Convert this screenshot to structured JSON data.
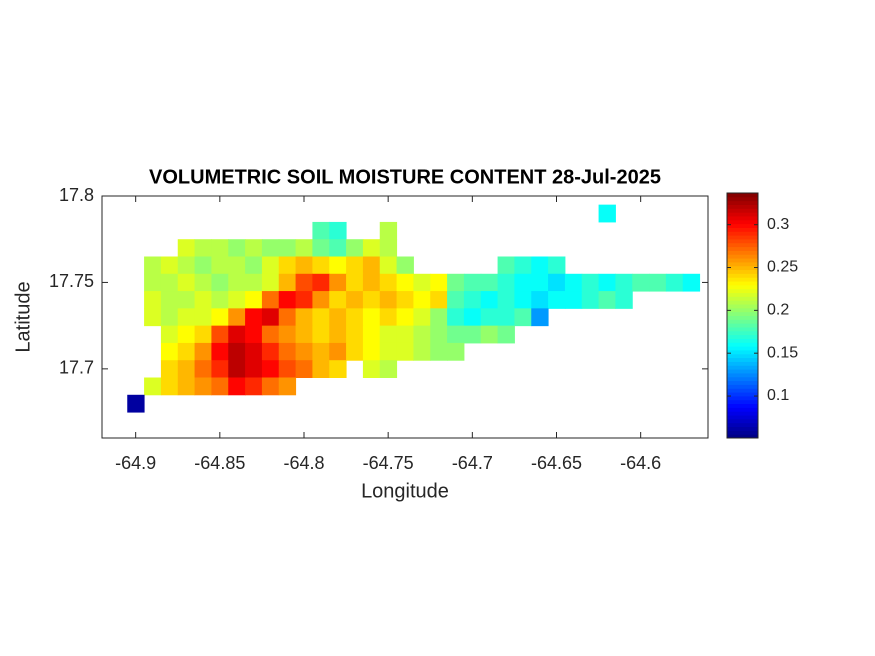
{
  "chart_data": {
    "type": "heatmap",
    "title": "VOLUMETRIC SOIL MOISTURE CONTENT 28-Jul-2025",
    "x_label": "Longitude",
    "y_label": "Latitude",
    "colormap": "jet",
    "xlim": [
      -64.92,
      -64.56
    ],
    "ylim": [
      17.66,
      17.8
    ],
    "xticks": [
      -64.9,
      -64.85,
      -64.8,
      -64.75,
      -64.7,
      -64.65,
      -64.6
    ],
    "yticks": [
      17.7,
      17.75,
      17.8
    ],
    "clim": [
      0.051,
      0.337
    ],
    "cticks": [
      0.1,
      0.15,
      0.2,
      0.25,
      0.3
    ],
    "lon": [
      -64.9,
      -64.89,
      -64.88,
      -64.87,
      -64.86,
      -64.85,
      -64.84,
      -64.83,
      -64.82,
      -64.81,
      -64.8,
      -64.79,
      -64.78,
      -64.77,
      -64.76,
      -64.75,
      -64.74,
      -64.73,
      -64.72,
      -64.71,
      -64.7,
      -64.69,
      -64.68,
      -64.67,
      -64.66,
      -64.65,
      -64.64,
      -64.63,
      -64.62,
      -64.61,
      -64.6,
      -64.59,
      -64.58,
      -64.57
    ],
    "lat": [
      17.79,
      17.78,
      17.77,
      17.76,
      17.75,
      17.74,
      17.73,
      17.72,
      17.71,
      17.7,
      17.69,
      17.68
    ],
    "values": [
      [
        null,
        null,
        null,
        null,
        null,
        null,
        null,
        null,
        null,
        null,
        null,
        null,
        null,
        null,
        null,
        null,
        null,
        null,
        null,
        null,
        null,
        null,
        null,
        null,
        null,
        null,
        null,
        null,
        0.16,
        null,
        null,
        null,
        null,
        null
      ],
      [
        null,
        null,
        null,
        null,
        null,
        null,
        null,
        null,
        null,
        null,
        null,
        0.18,
        0.17,
        null,
        null,
        0.21,
        null,
        null,
        null,
        null,
        null,
        null,
        null,
        null,
        null,
        null,
        null,
        null,
        null,
        null,
        null,
        null,
        null,
        null
      ],
      [
        null,
        null,
        null,
        0.22,
        0.21,
        0.21,
        0.2,
        0.21,
        0.2,
        0.2,
        0.21,
        0.19,
        0.18,
        0.2,
        0.22,
        0.21,
        null,
        null,
        null,
        null,
        null,
        null,
        null,
        null,
        null,
        null,
        null,
        null,
        null,
        null,
        null,
        null,
        null,
        null
      ],
      [
        null,
        0.21,
        0.22,
        0.21,
        0.2,
        0.21,
        0.21,
        0.2,
        0.22,
        0.24,
        0.25,
        0.24,
        0.23,
        0.24,
        0.25,
        0.22,
        0.2,
        null,
        null,
        null,
        null,
        null,
        0.18,
        0.17,
        0.16,
        0.17,
        null,
        null,
        null,
        null,
        null,
        null,
        null,
        null
      ],
      [
        null,
        0.21,
        0.21,
        0.22,
        0.21,
        0.2,
        0.21,
        0.21,
        0.22,
        0.25,
        0.28,
        0.29,
        0.26,
        0.24,
        0.25,
        0.24,
        0.23,
        0.22,
        0.23,
        0.19,
        0.18,
        0.18,
        0.17,
        0.16,
        0.16,
        0.15,
        0.16,
        0.17,
        0.16,
        0.17,
        0.18,
        0.18,
        0.17,
        0.16
      ],
      [
        null,
        0.22,
        0.21,
        0.21,
        0.22,
        0.21,
        0.22,
        0.23,
        0.27,
        0.3,
        0.29,
        0.26,
        0.24,
        0.25,
        0.24,
        0.25,
        0.24,
        0.23,
        0.24,
        0.18,
        0.17,
        0.16,
        0.17,
        0.16,
        0.15,
        0.16,
        0.16,
        0.17,
        0.18,
        0.17,
        null,
        null,
        null,
        null
      ],
      [
        null,
        0.22,
        0.21,
        0.22,
        0.22,
        0.23,
        0.26,
        0.3,
        0.31,
        0.27,
        0.25,
        0.24,
        0.25,
        0.24,
        0.23,
        0.24,
        0.23,
        0.22,
        0.2,
        0.17,
        0.16,
        0.17,
        0.17,
        0.18,
        0.13,
        null,
        null,
        null,
        null,
        null,
        null,
        null,
        null,
        null
      ],
      [
        null,
        null,
        0.22,
        0.23,
        0.24,
        0.28,
        0.31,
        0.3,
        0.27,
        0.26,
        0.25,
        0.24,
        0.25,
        0.24,
        0.23,
        0.22,
        0.22,
        0.21,
        0.2,
        0.19,
        0.19,
        0.2,
        0.19,
        null,
        null,
        null,
        null,
        null,
        null,
        null,
        null,
        null,
        null,
        null
      ],
      [
        null,
        null,
        0.23,
        0.24,
        0.26,
        0.3,
        0.32,
        0.31,
        0.29,
        0.27,
        0.26,
        0.25,
        0.26,
        0.24,
        0.23,
        0.22,
        0.22,
        0.21,
        0.2,
        0.2,
        null,
        null,
        null,
        null,
        null,
        null,
        null,
        null,
        null,
        null,
        null,
        null,
        null,
        null
      ],
      [
        null,
        null,
        0.24,
        0.25,
        0.27,
        0.29,
        0.32,
        0.31,
        0.3,
        0.28,
        0.27,
        0.25,
        0.24,
        null,
        0.22,
        0.21,
        null,
        null,
        null,
        null,
        null,
        null,
        null,
        null,
        null,
        null,
        null,
        null,
        null,
        null,
        null,
        null,
        null,
        null
      ],
      [
        null,
        0.22,
        0.24,
        0.25,
        0.26,
        0.27,
        0.3,
        0.29,
        0.27,
        0.26,
        null,
        null,
        null,
        null,
        null,
        null,
        null,
        null,
        null,
        null,
        null,
        null,
        null,
        null,
        null,
        null,
        null,
        null,
        null,
        null,
        null,
        null,
        null,
        null
      ],
      [
        0.06,
        null,
        null,
        null,
        null,
        null,
        null,
        null,
        null,
        null,
        null,
        null,
        null,
        null,
        null,
        null,
        null,
        null,
        null,
        null,
        null,
        null,
        null,
        null,
        null,
        null,
        null,
        null,
        null,
        null,
        null,
        null,
        null,
        null
      ]
    ]
  }
}
